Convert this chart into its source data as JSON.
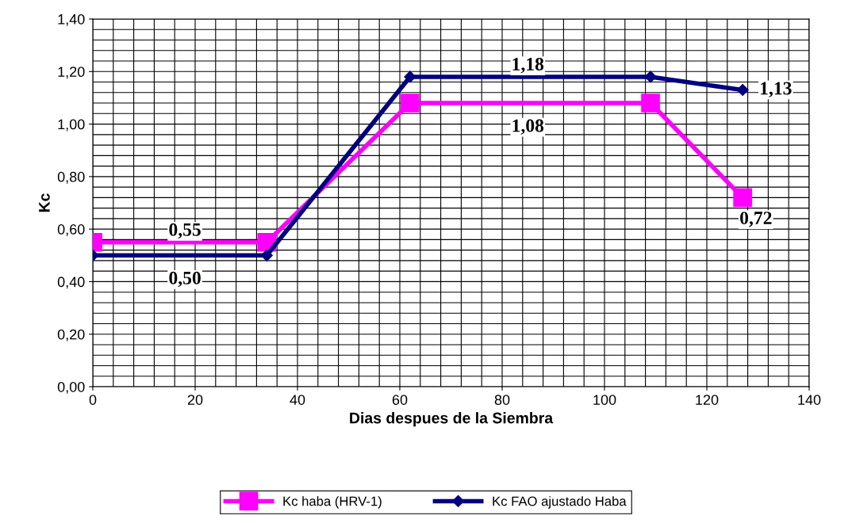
{
  "chart_data": {
    "type": "line",
    "xlabel": "Dias despues de la Siembra",
    "ylabel": "Kc",
    "x": [
      0,
      34,
      62,
      109,
      127
    ],
    "series": [
      {
        "name": "Kc haba (HRV-1)",
        "color": "#ff00ff",
        "values": [
          0.55,
          0.55,
          1.08,
          1.08,
          0.72
        ],
        "marker": "square"
      },
      {
        "name": "Kc FAO ajustado Haba",
        "color": "#000080",
        "values": [
          0.5,
          0.5,
          1.18,
          1.18,
          1.13
        ],
        "marker": "diamond"
      }
    ],
    "annotations": [
      {
        "text": "0,55",
        "x": 18,
        "y": 0.55
      },
      {
        "text": "1,08",
        "x": 85,
        "y": 1.08
      },
      {
        "text": "0,72",
        "x": 127,
        "y": 0.72
      },
      {
        "text": "0,50",
        "x": 18,
        "y": 0.5
      },
      {
        "text": "1,18",
        "x": 85,
        "y": 1.18
      },
      {
        "text": "1,13",
        "x": 127,
        "y": 1.13
      }
    ],
    "xlim": [
      0,
      140
    ],
    "xticks": [
      0,
      20,
      40,
      60,
      80,
      100,
      120,
      140
    ],
    "ylim": [
      0,
      1.4
    ],
    "yticks": [
      {
        "value": 0,
        "label": "0,00"
      },
      {
        "value": 0.2,
        "label": "0,20"
      },
      {
        "value": 0.4,
        "label": "0,40"
      },
      {
        "value": 0.6,
        "label": "0,60"
      },
      {
        "value": 0.8,
        "label": "0,80"
      },
      {
        "value": 1.0,
        "label": "1,00"
      },
      {
        "value": 1.2,
        "label": "1,20"
      },
      {
        "value": 1.4,
        "label": "1,40"
      }
    ],
    "grid": true,
    "legend": "bottom"
  }
}
